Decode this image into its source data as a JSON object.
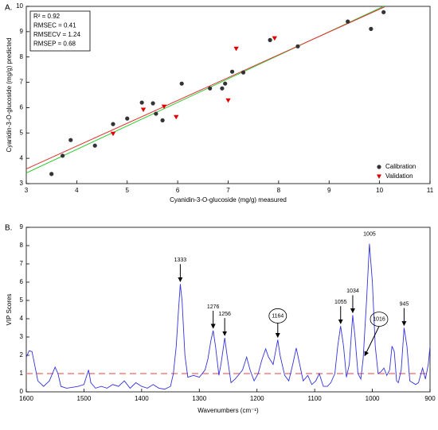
{
  "chart_data": [
    {
      "type": "scatter",
      "panel": "A.",
      "xlabel": "Cyanidin-3-O-glucoside (mg/g) measured",
      "ylabel": "Cyanidin-3-O-glucoside (mg/g) predicted",
      "stats": [
        "R² = 0.92",
        "RMSEC = 0.41",
        "RMSECV = 1.24",
        "RMSEP = 0.68"
      ],
      "xlim": [
        3,
        11
      ],
      "ylim": [
        3,
        10
      ],
      "xticks": [
        3,
        4,
        5,
        6,
        7,
        8,
        9,
        10,
        11
      ],
      "yticks": [
        3,
        4,
        5,
        6,
        7,
        8,
        9,
        10
      ],
      "legend": "lower right",
      "series": [
        {
          "name": "Calibration",
          "color": "#333333",
          "marker": "circle",
          "x": [
            3.5,
            3.72,
            3.88,
            4.36,
            4.72,
            5.0,
            5.29,
            5.51,
            5.57,
            5.7,
            6.08,
            6.64,
            6.88,
            6.94,
            7.08,
            7.3,
            7.83,
            8.38,
            9.37,
            9.83,
            10.08
          ],
          "values": [
            3.38,
            4.1,
            4.72,
            4.5,
            5.35,
            5.57,
            6.2,
            6.17,
            5.76,
            5.5,
            6.95,
            6.76,
            6.76,
            6.95,
            7.42,
            7.39,
            8.67,
            8.42,
            9.4,
            9.11,
            9.77
          ]
        },
        {
          "name": "Validation",
          "color": "#e00000",
          "marker": "triangle",
          "x": [
            4.72,
            5.32,
            5.73,
            5.97,
            7.0,
            7.16,
            7.92
          ],
          "values": [
            4.97,
            5.92,
            6.04,
            5.63,
            6.29,
            8.33,
            8.74
          ]
        }
      ],
      "fit_lines": [
        {
          "color": "#33cc33",
          "x": [
            3,
            10.1
          ],
          "values": [
            3.42,
            10.02
          ]
        },
        {
          "color": "#e03030",
          "x": [
            3,
            10.1
          ],
          "values": [
            3.58,
            9.98
          ]
        }
      ]
    },
    {
      "type": "line",
      "panel": "B.",
      "xlabel": "Wavenumbers (cm⁻¹)",
      "ylabel": "VIP Scores",
      "xlim": [
        1600,
        900
      ],
      "ylim": [
        0,
        9
      ],
      "xticks": [
        1600,
        1500,
        1400,
        1300,
        1200,
        1100,
        1000,
        900
      ],
      "yticks": [
        0,
        1,
        2,
        3,
        4,
        5,
        6,
        7,
        8,
        9
      ],
      "threshold": 1,
      "threshold_color": "#f08080",
      "color": "#3333dd",
      "x": [
        1600,
        1595,
        1590,
        1585,
        1580,
        1570,
        1560,
        1550,
        1545,
        1540,
        1530,
        1520,
        1510,
        1500,
        1495,
        1492,
        1488,
        1480,
        1470,
        1460,
        1450,
        1440,
        1430,
        1420,
        1410,
        1400,
        1390,
        1380,
        1370,
        1360,
        1350,
        1345,
        1340,
        1336,
        1333,
        1330,
        1325,
        1320,
        1310,
        1300,
        1290,
        1285,
        1280,
        1276,
        1272,
        1266,
        1262,
        1256,
        1252,
        1245,
        1238,
        1230,
        1225,
        1218,
        1212,
        1205,
        1198,
        1192,
        1185,
        1180,
        1172,
        1164,
        1160,
        1152,
        1145,
        1138,
        1132,
        1128,
        1120,
        1112,
        1105,
        1098,
        1092,
        1085,
        1078,
        1072,
        1065,
        1060,
        1055,
        1050,
        1045,
        1040,
        1034,
        1030,
        1025,
        1020,
        1016,
        1010,
        1005,
        1000,
        995,
        990,
        985,
        980,
        975,
        970,
        966,
        962,
        958,
        955,
        950,
        945,
        940,
        935,
        925,
        920,
        913,
        908,
        903,
        900
      ],
      "values": [
        1.9,
        2.25,
        2.2,
        1.4,
        0.6,
        0.3,
        0.6,
        1.35,
        1.0,
        0.3,
        0.2,
        0.25,
        0.3,
        0.4,
        0.9,
        1.2,
        0.5,
        0.2,
        0.3,
        0.2,
        0.4,
        0.3,
        0.6,
        0.2,
        0.5,
        0.3,
        0.2,
        0.4,
        0.2,
        0.15,
        0.3,
        1.0,
        2.5,
        4.5,
        5.9,
        5.0,
        2.0,
        0.8,
        0.9,
        0.8,
        1.2,
        1.8,
        2.8,
        3.35,
        2.5,
        0.9,
        1.6,
        2.95,
        2.0,
        0.5,
        0.7,
        1.0,
        1.2,
        1.9,
        1.2,
        0.6,
        1.0,
        1.7,
        2.35,
        1.9,
        1.5,
        2.85,
        2.0,
        0.9,
        0.6,
        1.5,
        2.4,
        1.8,
        0.6,
        0.9,
        0.4,
        0.6,
        1.0,
        0.3,
        0.3,
        0.5,
        1.0,
        2.5,
        3.6,
        2.5,
        0.8,
        1.5,
        4.2,
        3.0,
        1.0,
        0.7,
        1.8,
        5.0,
        8.1,
        6.0,
        2.5,
        1.0,
        1.1,
        1.3,
        0.9,
        1.2,
        2.5,
        2.2,
        0.6,
        0.5,
        1.2,
        3.5,
        2.5,
        0.6,
        0.4,
        0.5,
        1.3,
        0.7,
        1.5,
        2.5
      ],
      "annotations": [
        {
          "x": 1333,
          "y": 5.9,
          "circled": false
        },
        {
          "x": 1276,
          "y": 3.35,
          "circled": false
        },
        {
          "x": 1256,
          "y": 2.95,
          "circled": false
        },
        {
          "x": 1164,
          "y": 2.85,
          "circled": true
        },
        {
          "x": 1055,
          "y": 3.6,
          "circled": false
        },
        {
          "x": 1034,
          "y": 4.2,
          "circled": false
        },
        {
          "x": 1016,
          "y": 1.8,
          "circled": true
        },
        {
          "x": 1005,
          "y": 8.1,
          "circled": false
        },
        {
          "x": 945,
          "y": 3.5,
          "circled": false
        }
      ]
    }
  ]
}
